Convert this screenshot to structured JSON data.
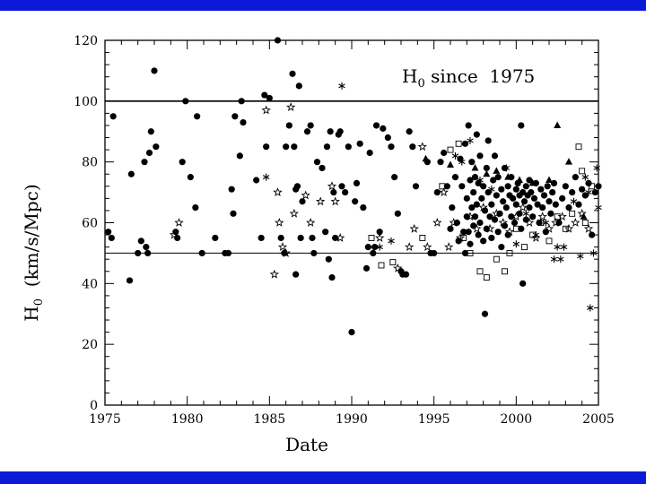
{
  "theme": {
    "band_color": "#0a1ad6",
    "ink": "#000000",
    "background": "#ffffff"
  },
  "chart_data": {
    "type": "scatter",
    "title_main": "H",
    "title_sub": "0",
    "title_rest": " since  1975",
    "xlabel": "Date",
    "ylabel_main": "H",
    "ylabel_sub": "0",
    "ylabel_rest": "  (km/s/Mpc)",
    "xlim": [
      1975,
      2005
    ],
    "ylim": [
      0,
      120
    ],
    "xticks": [
      "1975",
      "1980",
      "1985",
      "1990",
      "1995",
      "2000",
      "2005"
    ],
    "yticks": [
      "0",
      "20",
      "40",
      "60",
      "80",
      "100",
      "120"
    ],
    "grid": false,
    "reference_lines": [
      {
        "y": 100,
        "style": "solid"
      },
      {
        "y": 50,
        "style": "solid"
      }
    ],
    "series": [
      {
        "marker": "filled-circle",
        "points": [
          [
            1975.2,
            57
          ],
          [
            1975.4,
            55
          ],
          [
            1975.5,
            95
          ],
          [
            1976.5,
            41
          ],
          [
            1976.6,
            76
          ],
          [
            1977.0,
            50
          ],
          [
            1977.2,
            54
          ],
          [
            1977.4,
            80
          ],
          [
            1977.5,
            52
          ],
          [
            1977.7,
            83
          ],
          [
            1977.8,
            90
          ],
          [
            1977.6,
            50
          ],
          [
            1978.0,
            110
          ],
          [
            1978.1,
            85
          ],
          [
            1979.3,
            57
          ],
          [
            1979.4,
            55
          ],
          [
            1979.7,
            80
          ],
          [
            1979.9,
            100
          ],
          [
            1980.2,
            75
          ],
          [
            1980.5,
            65
          ],
          [
            1980.6,
            95
          ],
          [
            1980.9,
            50
          ],
          [
            1981.7,
            55
          ],
          [
            1982.3,
            50
          ],
          [
            1982.5,
            50
          ],
          [
            1982.7,
            71
          ],
          [
            1982.8,
            63
          ],
          [
            1982.9,
            95
          ],
          [
            1983.2,
            82
          ],
          [
            1983.3,
            100
          ],
          [
            1983.4,
            93
          ],
          [
            1984.2,
            74
          ],
          [
            1984.5,
            55
          ],
          [
            1984.7,
            102
          ],
          [
            1984.8,
            85
          ],
          [
            1985.0,
            101
          ],
          [
            1985.5,
            120
          ],
          [
            1985.7,
            55
          ],
          [
            1985.9,
            50
          ],
          [
            1986.0,
            85
          ],
          [
            1986.2,
            92
          ],
          [
            1986.4,
            109
          ],
          [
            1986.5,
            85
          ],
          [
            1986.6,
            43
          ],
          [
            1986.6,
            71
          ],
          [
            1986.7,
            72
          ],
          [
            1986.8,
            105
          ],
          [
            1986.9,
            55
          ],
          [
            1987.0,
            67
          ],
          [
            1987.3,
            90
          ],
          [
            1987.5,
            92
          ],
          [
            1987.6,
            55
          ],
          [
            1987.7,
            50
          ],
          [
            1987.9,
            80
          ],
          [
            1988.2,
            78
          ],
          [
            1988.4,
            57
          ],
          [
            1988.5,
            85
          ],
          [
            1988.6,
            48
          ],
          [
            1988.7,
            90
          ],
          [
            1988.8,
            42
          ],
          [
            1988.9,
            70
          ],
          [
            1989.0,
            55
          ],
          [
            1989.2,
            89
          ],
          [
            1989.3,
            90
          ],
          [
            1989.4,
            72
          ],
          [
            1989.6,
            70
          ],
          [
            1989.8,
            85
          ],
          [
            1990.0,
            24
          ],
          [
            1990.2,
            67
          ],
          [
            1990.3,
            73
          ],
          [
            1990.5,
            86
          ],
          [
            1990.7,
            65
          ],
          [
            1990.9,
            45
          ],
          [
            1991.0,
            52
          ],
          [
            1991.1,
            83
          ],
          [
            1991.3,
            50
          ],
          [
            1991.4,
            52
          ],
          [
            1991.5,
            92
          ],
          [
            1991.7,
            57
          ],
          [
            1991.9,
            91
          ],
          [
            1992.2,
            88
          ],
          [
            1992.4,
            85
          ],
          [
            1992.6,
            75
          ],
          [
            1992.8,
            63
          ],
          [
            1993.0,
            44
          ],
          [
            1993.1,
            43
          ],
          [
            1993.3,
            43
          ],
          [
            1993.5,
            90
          ],
          [
            1993.7,
            85
          ],
          [
            1993.9,
            72
          ],
          [
            1994.6,
            80
          ],
          [
            1994.8,
            50
          ],
          [
            1995.0,
            50
          ],
          [
            1995.2,
            70
          ],
          [
            1995.4,
            80
          ],
          [
            1995.6,
            83
          ],
          [
            1995.8,
            72
          ],
          [
            1996.0,
            58
          ],
          [
            1996.1,
            65
          ],
          [
            1996.3,
            75
          ],
          [
            1996.4,
            60
          ],
          [
            1996.5,
            54
          ],
          [
            1996.6,
            81
          ],
          [
            1996.7,
            72
          ],
          [
            1996.8,
            57
          ],
          [
            1996.9,
            50
          ],
          [
            1996.9,
            86
          ],
          [
            1997.0,
            68
          ],
          [
            1997.0,
            62
          ],
          [
            1997.1,
            92
          ],
          [
            1997.1,
            57
          ],
          [
            1997.2,
            74
          ],
          [
            1997.2,
            53
          ],
          [
            1997.3,
            80
          ],
          [
            1997.3,
            65
          ],
          [
            1997.4,
            70
          ],
          [
            1997.4,
            59
          ],
          [
            1997.5,
            75
          ],
          [
            1997.5,
            62
          ],
          [
            1997.6,
            89
          ],
          [
            1997.6,
            66
          ],
          [
            1997.7,
            56
          ],
          [
            1997.7,
            73
          ],
          [
            1997.8,
            82
          ],
          [
            1997.8,
            60
          ],
          [
            1997.9,
            68
          ],
          [
            1998.0,
            54
          ],
          [
            1998.0,
            72
          ],
          [
            1998.1,
            30
          ],
          [
            1998.1,
            64
          ],
          [
            1998.2,
            78
          ],
          [
            1998.2,
            58
          ],
          [
            1998.3,
            70
          ],
          [
            1998.3,
            87
          ],
          [
            1998.4,
            62
          ],
          [
            1998.5,
            66
          ],
          [
            1998.5,
            55
          ],
          [
            1998.6,
            74
          ],
          [
            1998.7,
            82
          ],
          [
            1998.7,
            61
          ],
          [
            1998.8,
            69
          ],
          [
            1998.9,
            57
          ],
          [
            1998.9,
            75
          ],
          [
            1999.0,
            63
          ],
          [
            1999.1,
            71
          ],
          [
            1999.1,
            52
          ],
          [
            1999.2,
            67
          ],
          [
            1999.3,
            59
          ],
          [
            1999.3,
            78
          ],
          [
            1999.4,
            65
          ],
          [
            1999.5,
            72
          ],
          [
            1999.5,
            56
          ],
          [
            1999.6,
            69
          ],
          [
            1999.7,
            62
          ],
          [
            1999.7,
            75
          ],
          [
            1999.8,
            68
          ],
          [
            1999.9,
            60
          ],
          [
            2000.0,
            71
          ],
          [
            2000.0,
            66
          ],
          [
            2000.1,
            73
          ],
          [
            2000.2,
            63
          ],
          [
            2000.2,
            69
          ],
          [
            2000.3,
            92
          ],
          [
            2000.3,
            58
          ],
          [
            2000.4,
            70
          ],
          [
            2000.4,
            40
          ],
          [
            2000.5,
            67
          ],
          [
            2000.6,
            72
          ],
          [
            2000.6,
            61
          ],
          [
            2000.7,
            69
          ],
          [
            2000.8,
            65
          ],
          [
            2000.8,
            74
          ],
          [
            2000.9,
            70
          ],
          [
            2001.0,
            62
          ],
          [
            2001.1,
            68
          ],
          [
            2001.2,
            73
          ],
          [
            2001.3,
            66
          ],
          [
            2001.4,
            60
          ],
          [
            2001.5,
            71
          ],
          [
            2001.6,
            65
          ],
          [
            2001.7,
            69
          ],
          [
            2001.8,
            57
          ],
          [
            2001.9,
            72
          ],
          [
            2002.0,
            67
          ],
          [
            2002.1,
            63
          ],
          [
            2002.2,
            70
          ],
          [
            2002.3,
            73
          ],
          [
            2002.4,
            66
          ],
          [
            2002.6,
            60
          ],
          [
            2002.8,
            68
          ],
          [
            2003.0,
            72
          ],
          [
            2003.2,
            65
          ],
          [
            2003.4,
            70
          ],
          [
            2003.6,
            75
          ],
          [
            2003.8,
            66
          ],
          [
            2004.0,
            71
          ],
          [
            2004.2,
            69
          ],
          [
            2004.4,
            73
          ],
          [
            2004.6,
            56
          ],
          [
            2004.8,
            70
          ],
          [
            2005.0,
            72
          ]
        ]
      },
      {
        "marker": "open-star",
        "points": [
          [
            1979.2,
            56
          ],
          [
            1979.5,
            60
          ],
          [
            1984.8,
            97
          ],
          [
            1985.3,
            43
          ],
          [
            1985.5,
            70
          ],
          [
            1985.6,
            60
          ],
          [
            1985.8,
            52
          ],
          [
            1986.0,
            50
          ],
          [
            1986.3,
            98
          ],
          [
            1986.5,
            63
          ],
          [
            1987.2,
            69
          ],
          [
            1987.5,
            60
          ],
          [
            1988.1,
            67
          ],
          [
            1988.8,
            72
          ],
          [
            1989.0,
            67
          ],
          [
            1989.3,
            55
          ],
          [
            1991.7,
            55
          ],
          [
            1992.8,
            45
          ],
          [
            1993.5,
            52
          ],
          [
            1993.8,
            58
          ],
          [
            1994.3,
            85
          ],
          [
            1994.6,
            52
          ],
          [
            1995.2,
            60
          ],
          [
            1995.6,
            70
          ],
          [
            1995.9,
            52
          ],
          [
            1996.2,
            60
          ],
          [
            1996.6,
            55
          ],
          [
            1997.2,
            62
          ],
          [
            1997.6,
            58
          ],
          [
            1998.0,
            65
          ],
          [
            1998.4,
            58
          ],
          [
            1998.8,
            63
          ],
          [
            1999.2,
            60
          ],
          [
            1999.6,
            57
          ],
          [
            2000.0,
            62
          ],
          [
            2000.4,
            65
          ],
          [
            2000.8,
            60
          ],
          [
            2001.2,
            55
          ],
          [
            2001.6,
            62
          ],
          [
            2002.0,
            58
          ],
          [
            2002.4,
            60
          ],
          [
            2002.8,
            62
          ],
          [
            2003.2,
            58
          ],
          [
            2003.6,
            60
          ],
          [
            2004.0,
            63
          ],
          [
            2004.4,
            58
          ]
        ]
      },
      {
        "marker": "asterisk",
        "points": [
          [
            1984.8,
            75
          ],
          [
            1989.4,
            105
          ],
          [
            1991.7,
            52
          ],
          [
            1992.4,
            54
          ],
          [
            1996.3,
            82
          ],
          [
            1996.7,
            80
          ],
          [
            1997.2,
            87
          ],
          [
            1997.8,
            74
          ],
          [
            1998.5,
            71
          ],
          [
            1999.4,
            78
          ],
          [
            2000.0,
            53
          ],
          [
            2000.6,
            63
          ],
          [
            2001.2,
            56
          ],
          [
            2001.8,
            60
          ],
          [
            2002.3,
            48
          ],
          [
            2002.5,
            52
          ],
          [
            2002.7,
            48
          ],
          [
            2002.9,
            52
          ],
          [
            2003.5,
            67
          ],
          [
            2003.9,
            49
          ],
          [
            2004.2,
            75
          ],
          [
            2004.4,
            70
          ],
          [
            2004.5,
            32
          ],
          [
            2004.7,
            50
          ],
          [
            2004.9,
            78
          ],
          [
            2005.0,
            65
          ]
        ]
      },
      {
        "marker": "open-square",
        "points": [
          [
            1991.2,
            55
          ],
          [
            1991.8,
            46
          ],
          [
            1992.5,
            47
          ],
          [
            1994.3,
            55
          ],
          [
            1995.5,
            72
          ],
          [
            1996.0,
            84
          ],
          [
            1996.5,
            86
          ],
          [
            1996.8,
            55
          ],
          [
            1997.2,
            50
          ],
          [
            1997.8,
            44
          ],
          [
            1998.2,
            42
          ],
          [
            1998.8,
            48
          ],
          [
            1999.3,
            44
          ],
          [
            1999.6,
            50
          ],
          [
            2000.0,
            58
          ],
          [
            2000.5,
            52
          ],
          [
            2001.0,
            56
          ],
          [
            2001.5,
            60
          ],
          [
            2002.0,
            54
          ],
          [
            2002.5,
            62
          ],
          [
            2003.0,
            58
          ],
          [
            2003.4,
            63
          ],
          [
            2003.8,
            85
          ],
          [
            2004.0,
            77
          ],
          [
            2004.2,
            60
          ],
          [
            2004.6,
            72
          ]
        ]
      },
      {
        "marker": "filled-triangle",
        "points": [
          [
            1994.5,
            81
          ],
          [
            1996.0,
            79
          ],
          [
            1997.5,
            78
          ],
          [
            1998.2,
            76
          ],
          [
            1998.8,
            77
          ],
          [
            1999.5,
            75
          ],
          [
            2000.2,
            74
          ],
          [
            2001.0,
            73
          ],
          [
            2002.0,
            74
          ],
          [
            2002.5,
            92
          ],
          [
            2003.2,
            80
          ],
          [
            2004.1,
            62
          ]
        ]
      }
    ]
  }
}
